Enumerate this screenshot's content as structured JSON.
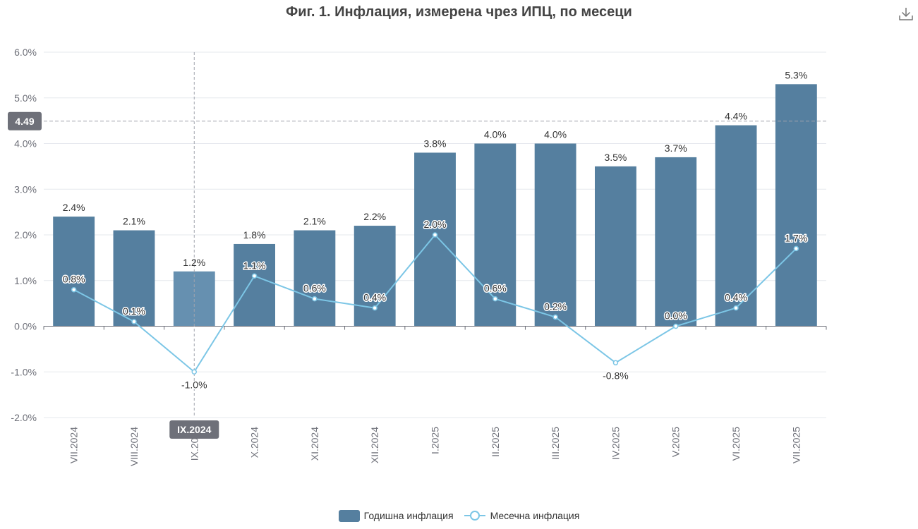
{
  "title": "Фиг. 1. Инфлация, измерена чрез ИПЦ, по месеци",
  "toolbar": {
    "download_icon": "download-icon"
  },
  "colors": {
    "bar": "#557f9f",
    "bar_highlight": "#6690b0",
    "line": "#7cc6e6",
    "grid": "#e6e8ee",
    "axis": "#6e7079",
    "crosshair": "#a0a4ad",
    "tooltip_bg": "#6e7079"
  },
  "chart_data": {
    "type": "bar",
    "categories": [
      "VII.2024",
      "VIII.2024",
      "IX.2024",
      "X.2024",
      "XI.2024",
      "XII.2024",
      "I.2025",
      "II.2025",
      "III.2025",
      "IV.2025",
      "V.2025",
      "VI.2025",
      "VII.2025"
    ],
    "series": [
      {
        "name": "Годишна инфлация",
        "type": "bar",
        "values": [
          2.4,
          2.1,
          1.2,
          1.8,
          2.1,
          2.2,
          3.8,
          4.0,
          4.0,
          3.5,
          3.7,
          4.4,
          5.3
        ],
        "labels": [
          "2.4%",
          "2.1%",
          "1.2%",
          "1.8%",
          "2.1%",
          "2.2%",
          "3.8%",
          "4.0%",
          "4.0%",
          "3.5%",
          "3.7%",
          "4.4%",
          "5.3%"
        ]
      },
      {
        "name": "Месечна инфлация",
        "type": "line",
        "values": [
          0.8,
          0.1,
          -1.0,
          1.1,
          0.6,
          0.4,
          2.0,
          0.6,
          0.2,
          -0.8,
          0.0,
          0.4,
          1.7
        ],
        "labels": [
          "0.8%",
          "0.1%",
          "-1.0%",
          "1.1%",
          "0.6%",
          "0.4%",
          "2.0%",
          "0.6%",
          "0.2%",
          "-0.8%",
          "0.0%",
          "0.4%",
          "1.7%"
        ]
      }
    ],
    "yticks": [
      "-2.0%",
      "-1.0%",
      "0.0%",
      "1.0%",
      "2.0%",
      "3.0%",
      "4.0%",
      "5.0%",
      "6.0%"
    ],
    "ylim": [
      -2,
      6
    ],
    "grid": true,
    "legend": "bottom-center",
    "crosshair": {
      "category": "IX.2024",
      "y_value": 4.49,
      "y_label": "4.49",
      "x_label": "IX.2024"
    }
  }
}
